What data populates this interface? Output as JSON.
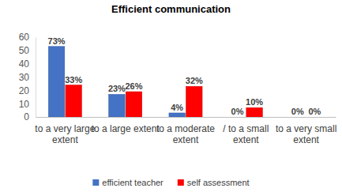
{
  "chart_data": {
    "type": "bar",
    "title": "Efficient communication",
    "categories": [
      "to a very large extent",
      "to a large extent",
      "to a moderate extent",
      "/ to a small extent",
      "to a very small extent"
    ],
    "series": [
      {
        "name": "efficient teacher",
        "color": "#4472c4",
        "values": [
          53,
          17,
          3,
          0,
          0
        ],
        "value_labels": [
          "73%",
          "23%",
          "4%",
          "0%",
          "0%"
        ]
      },
      {
        "name": "self assessment",
        "color": "#ff0000",
        "values": [
          24,
          19,
          23,
          7,
          0
        ],
        "value_labels": [
          "33%",
          "26%",
          "32%",
          "10%",
          "0%"
        ]
      }
    ],
    "ylim": [
      0,
      60
    ],
    "yticks": [
      0,
      10,
      20,
      30,
      40,
      50,
      60
    ],
    "grid": false,
    "data_labels": true,
    "legend": "bottom"
  }
}
